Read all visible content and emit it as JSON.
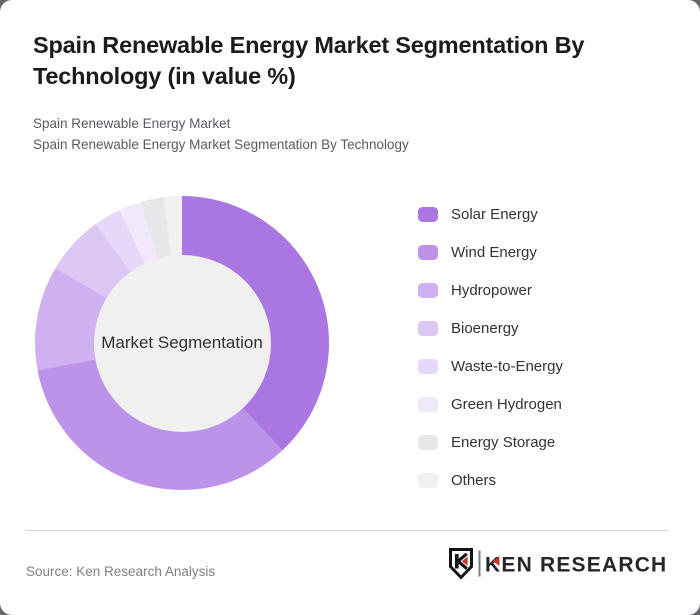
{
  "header": {
    "title": "Spain Renewable Energy Market Segmentation By Technology (in value %)",
    "subtitle_line1": "Spain Renewable Energy Market",
    "subtitle_line2": "Spain Renewable Energy Market Segmentation By Technology"
  },
  "chart_data": {
    "type": "pie",
    "variant": "donut",
    "title": "Spain Renewable Energy Market Segmentation By Technology (in value %)",
    "unit": "value %",
    "center_label": "Market Segmentation",
    "center_circle_color": "#f0f0f0",
    "legend_position": "right",
    "start_angle_deg": 0,
    "direction": "clockwise",
    "segments": [
      {
        "label": "Solar Energy",
        "value": 38,
        "color": "#aa76e2"
      },
      {
        "label": "Wind Energy",
        "value": 34,
        "color": "#bc93e8"
      },
      {
        "label": "Hydropower",
        "value": 11.5,
        "color": "#cfb0f0"
      },
      {
        "label": "Bioenergy",
        "value": 6.5,
        "color": "#dcc6f4"
      },
      {
        "label": "Waste-to-Energy",
        "value": 3,
        "color": "#e7d7f8"
      },
      {
        "label": "Green Hydrogen",
        "value": 2.5,
        "color": "#f1e9fa"
      },
      {
        "label": "Energy Storage",
        "value": 2.5,
        "color": "#e7e7e9"
      },
      {
        "label": "Others",
        "value": 2,
        "color": "#f1f1f2"
      }
    ]
  },
  "footer": {
    "source": "Source: Ken Research Analysis",
    "logo": {
      "brand": "KEN RESEARCH",
      "mark_letter": "K",
      "accent_color": "#c5342e",
      "text_color": "#24262a",
      "separator_color": "#7a7e84"
    }
  }
}
